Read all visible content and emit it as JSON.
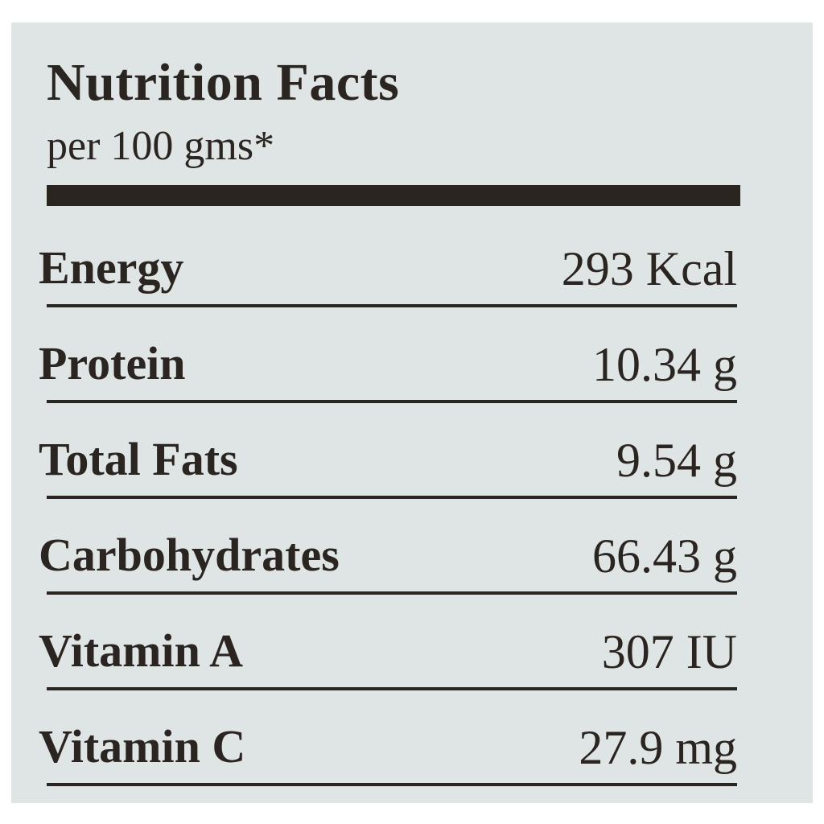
{
  "header": {
    "title": "Nutrition Facts",
    "subtitle": "per 100 gms*"
  },
  "table": {
    "rows": [
      [
        "Energy",
        "293 Kcal"
      ],
      [
        "Protein",
        "10.34 g"
      ],
      [
        "Total Fats",
        "9.54 g"
      ],
      [
        "Carbohydrates",
        "66.43 g"
      ],
      [
        "Vitamin A",
        "307 IU"
      ],
      [
        "Vitamin C",
        "27.9 mg"
      ]
    ]
  }
}
